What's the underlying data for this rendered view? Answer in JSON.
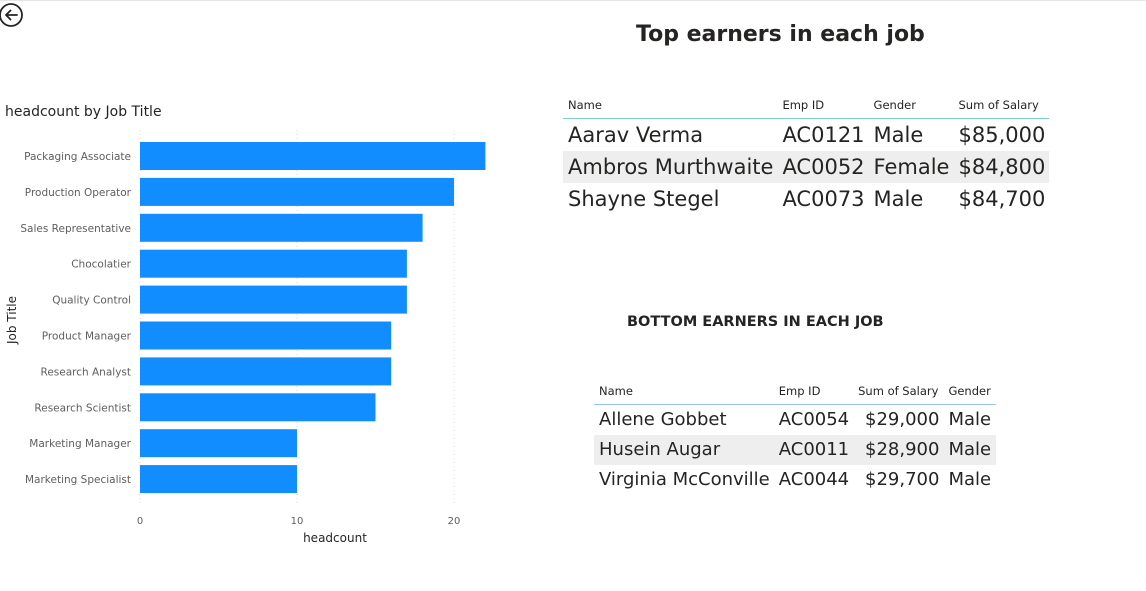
{
  "chart_data": {
    "type": "bar",
    "orientation": "horizontal",
    "title": "headcount by Job Title",
    "xlabel": "headcount",
    "ylabel": "Job Title",
    "categories": [
      "Packaging Associate",
      "Production Operator",
      "Sales Representative",
      "Chocolatier",
      "Quality Control",
      "Product Manager",
      "Research Analyst",
      "Research Scientist",
      "Marketing Manager",
      "Marketing Specialist"
    ],
    "values": [
      22,
      20,
      18,
      17,
      17,
      16,
      16,
      15,
      10,
      10
    ],
    "xlim": [
      0,
      25
    ],
    "xticks": [
      0,
      10,
      20
    ],
    "grid": true,
    "color": "#118dff"
  },
  "top": {
    "title": "Top earners in each job",
    "headers": [
      "Name",
      "Emp ID",
      "Gender",
      "Sum of Salary"
    ],
    "rows": [
      [
        "Aarav Verma",
        "AC0121",
        "Male",
        "$85,000"
      ],
      [
        "Ambros Murthwaite",
        "AC0052",
        "Female",
        "$84,800"
      ],
      [
        "Shayne Stegel",
        "AC0073",
        "Male",
        "$84,700"
      ]
    ]
  },
  "bottom": {
    "title": "BOTTOM EARNERS IN EACH JOB",
    "headers": [
      "Name",
      "Emp ID",
      "Sum of Salary",
      "Gender"
    ],
    "rows": [
      [
        "Allene Gobbet",
        "AC0054",
        "$29,000",
        "Male"
      ],
      [
        "Husein Augar",
        "AC0011",
        "$28,900",
        "Male"
      ],
      [
        "Virginia McConville",
        "AC0044",
        "$29,700",
        "Male"
      ]
    ]
  },
  "icons": {
    "back": "back-arrow-icon"
  },
  "colors": {
    "bar": "#118dff",
    "top_rule": "#7ecdc6",
    "bottom_rule": "#9cc4ee",
    "band": "#eeeeee"
  }
}
